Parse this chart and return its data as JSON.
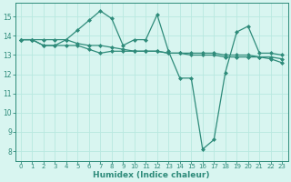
{
  "line1_x": [
    0,
    1,
    2,
    3,
    4,
    5,
    6,
    7,
    8,
    9,
    10,
    11,
    12,
    13,
    14,
    15,
    16,
    17,
    18,
    19,
    20,
    21,
    22,
    23
  ],
  "line1_y": [
    13.8,
    13.8,
    13.8,
    13.8,
    13.8,
    13.6,
    13.5,
    13.5,
    13.4,
    13.3,
    13.2,
    13.2,
    13.2,
    13.1,
    13.1,
    13.1,
    13.1,
    13.1,
    13.0,
    13.0,
    13.0,
    12.9,
    12.9,
    12.8
  ],
  "line2_x": [
    0,
    1,
    2,
    3,
    4,
    5,
    6,
    7,
    8,
    9,
    10,
    11,
    12,
    13,
    14,
    15,
    16,
    17,
    18,
    19,
    20,
    21,
    22,
    23
  ],
  "line2_y": [
    13.8,
    13.8,
    13.5,
    13.5,
    13.8,
    14.3,
    14.8,
    15.3,
    14.9,
    13.5,
    13.8,
    13.8,
    15.1,
    13.2,
    11.8,
    11.8,
    8.1,
    8.6,
    12.1,
    14.2,
    14.5,
    13.1,
    13.1,
    13.0
  ],
  "line3_x": [
    0,
    1,
    2,
    3,
    4,
    5,
    6,
    7,
    8,
    9,
    10,
    11,
    12,
    13,
    14,
    15,
    16,
    17,
    18,
    19,
    20,
    21,
    22,
    23
  ],
  "line3_y": [
    13.8,
    13.8,
    13.5,
    13.5,
    13.5,
    13.5,
    13.3,
    13.1,
    13.2,
    13.2,
    13.2,
    13.2,
    13.2,
    13.1,
    13.1,
    13.0,
    13.0,
    13.0,
    12.9,
    12.9,
    12.9,
    12.9,
    12.8,
    12.6
  ],
  "color": "#2e8b7a",
  "bg_color": "#d8f5f0",
  "grid_color": "#b8e8e0",
  "xlabel": "Humidex (Indice chaleur)",
  "ylim": [
    7.5,
    15.7
  ],
  "xlim": [
    -0.5,
    23.5
  ],
  "yticks": [
    8,
    9,
    10,
    11,
    12,
    13,
    14,
    15
  ],
  "xticks": [
    0,
    1,
    2,
    3,
    4,
    5,
    6,
    7,
    8,
    9,
    10,
    11,
    12,
    13,
    14,
    15,
    16,
    17,
    18,
    19,
    20,
    21,
    22,
    23
  ],
  "marker": "D",
  "markersize": 2.0,
  "linewidth": 0.9
}
